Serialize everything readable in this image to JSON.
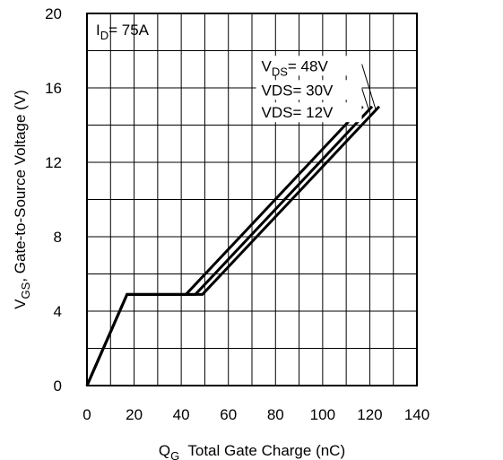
{
  "chart_data": {
    "type": "line",
    "x_axis": {
      "label_main": "Q",
      "label_sub": "G",
      "label_rest": "  Total Gate Charge (nC)",
      "min": 0,
      "max": 140,
      "ticks": [
        0,
        20,
        40,
        60,
        80,
        100,
        120,
        140
      ]
    },
    "y_axis": {
      "label_main": "V",
      "label_sub": "GS",
      "label_rest": ", Gate-to-Source Voltage (V)",
      "min": 0,
      "max": 20,
      "ticks": [
        0,
        4,
        8,
        12,
        16,
        20
      ]
    },
    "grid": true,
    "annotation": {
      "main": "I",
      "sub": "D",
      "rest": "= 75A"
    },
    "series": [
      {
        "name_main": "V",
        "name_sub": "DS",
        "name_rest": "= 48V",
        "label_x": 74,
        "label_y": 16.9,
        "points": [
          [
            0,
            0
          ],
          [
            17,
            4.9
          ],
          [
            49,
            4.9
          ],
          [
            124,
            15
          ]
        ]
      },
      {
        "name_main": "VDS",
        "name_sub": "",
        "name_rest": "= 30V",
        "label_x": 74,
        "label_y": 15.6,
        "points": [
          [
            0,
            0
          ],
          [
            17,
            4.9
          ],
          [
            46,
            4.9
          ],
          [
            121,
            15
          ]
        ]
      },
      {
        "name_main": "VDS",
        "name_sub": "",
        "name_rest": "= 12V",
        "label_x": 74,
        "label_y": 14.4,
        "points": [
          [
            0,
            0
          ],
          [
            17,
            4.9
          ],
          [
            42,
            4.9
          ],
          [
            117,
            15
          ]
        ]
      }
    ]
  }
}
